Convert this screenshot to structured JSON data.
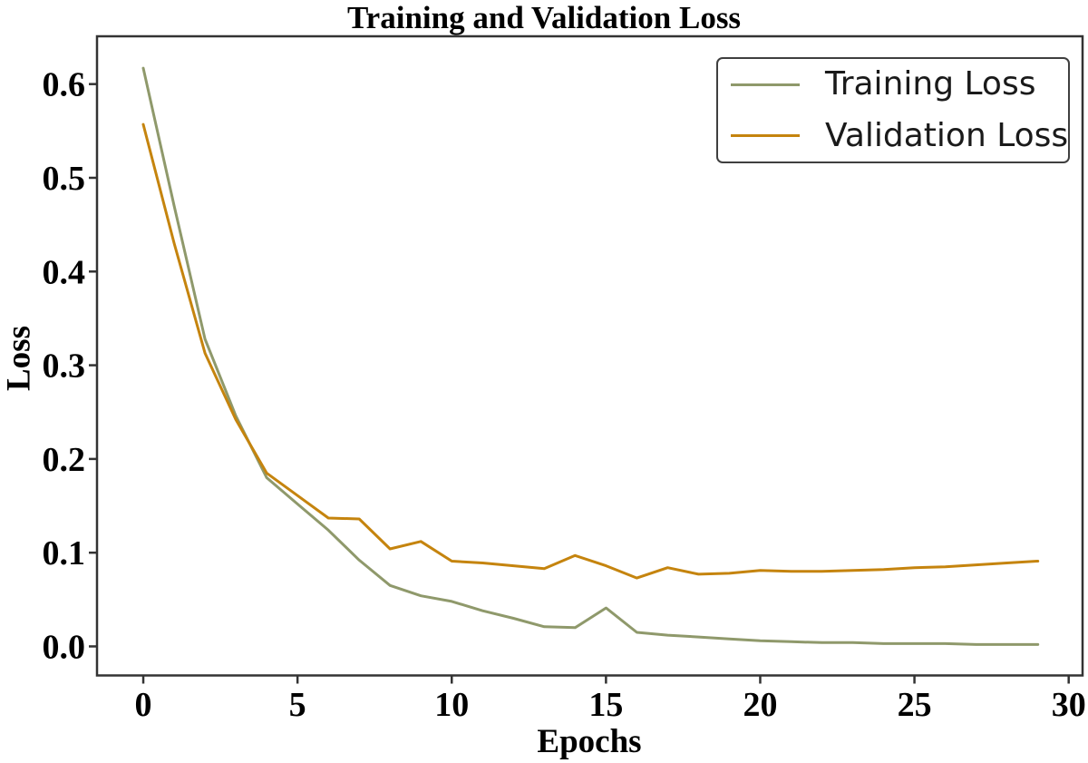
{
  "figure": {
    "background": "#ffffff",
    "frame_color": "#333333",
    "text_color": "#000000"
  },
  "chart_data": {
    "type": "line",
    "title": "Training and Validation Loss",
    "xlabel": "Epochs",
    "ylabel": "Loss",
    "x": [
      0,
      1,
      2,
      3,
      4,
      5,
      6,
      7,
      8,
      9,
      10,
      11,
      12,
      13,
      14,
      15,
      16,
      17,
      18,
      19,
      20,
      21,
      22,
      23,
      24,
      25,
      26,
      27,
      28,
      29
    ],
    "series": [
      {
        "name": "Training Loss",
        "color": "#8F996B",
        "values": [
          0.617,
          0.47,
          0.328,
          0.246,
          0.18,
          0.152,
          0.124,
          0.092,
          0.065,
          0.054,
          0.048,
          0.038,
          0.03,
          0.021,
          0.02,
          0.041,
          0.015,
          0.012,
          0.01,
          0.008,
          0.006,
          0.005,
          0.004,
          0.004,
          0.003,
          0.003,
          0.003,
          0.002,
          0.002,
          0.002
        ]
      },
      {
        "name": "Validation Loss",
        "color": "#C5840E",
        "values": [
          0.557,
          0.43,
          0.313,
          0.242,
          0.185,
          0.161,
          0.137,
          0.136,
          0.104,
          0.112,
          0.091,
          0.089,
          0.086,
          0.083,
          0.097,
          0.086,
          0.073,
          0.084,
          0.077,
          0.078,
          0.081,
          0.08,
          0.08,
          0.081,
          0.082,
          0.084,
          0.085,
          0.087,
          0.089,
          0.091
        ]
      }
    ],
    "xlim": [
      -1.5,
      30.45
    ],
    "ylim": [
      -0.031,
      0.651
    ],
    "xticks": [
      0,
      5,
      10,
      15,
      20,
      25,
      30
    ],
    "ytick_labels": [
      "0.0",
      "0.1",
      "0.2",
      "0.3",
      "0.4",
      "0.5",
      "0.6"
    ],
    "grid": false,
    "legend_position": "upper right"
  }
}
